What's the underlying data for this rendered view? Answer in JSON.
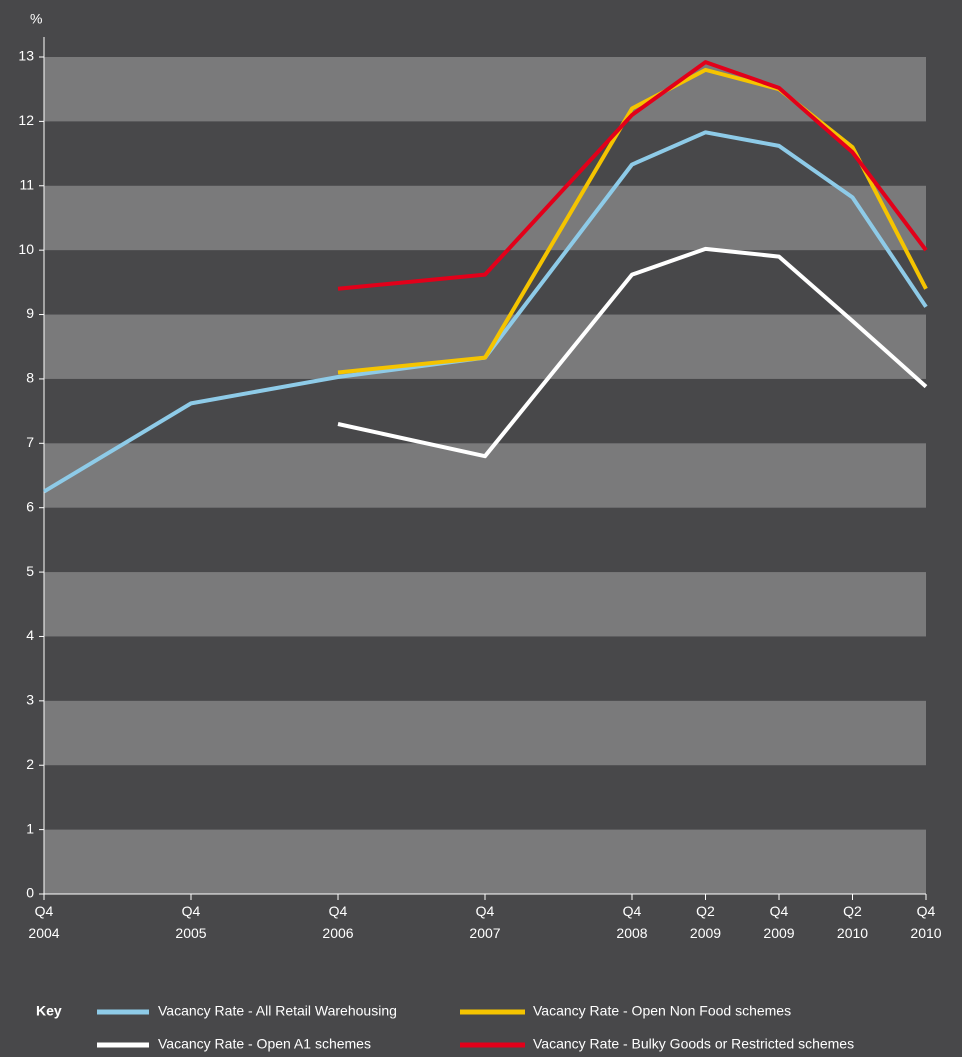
{
  "chart_data": {
    "type": "line",
    "y_label": "%",
    "legend_title": "Key",
    "categories": [
      "Q4 2004",
      "Q4 2005",
      "Q4 2006",
      "Q4 2007",
      "Q4 2008",
      "Q2 2009",
      "Q4 2009",
      "Q2 2010",
      "Q4 2010"
    ],
    "series": [
      {
        "name": "Vacancy Rate - All Retail Warehousing",
        "color": "#8ecbe8",
        "values": [
          6.25,
          7.62,
          8.03,
          8.33,
          11.33,
          11.83,
          11.62,
          10.82,
          9.12
        ]
      },
      {
        "name": "Vacancy Rate - Open Non Food schemes",
        "color": "#f5c400",
        "values": [
          null,
          null,
          8.1,
          8.33,
          12.2,
          12.8,
          12.5,
          11.6,
          9.4
        ]
      },
      {
        "name": "Vacancy Rate - Open A1 schemes",
        "color": "#ffffff",
        "values": [
          null,
          null,
          7.3,
          6.8,
          9.62,
          10.02,
          9.9,
          8.9,
          7.88
        ]
      },
      {
        "name": "Vacancy Rate - Bulky Goods or Restricted schemes",
        "color": "#e2001a",
        "values": [
          null,
          null,
          9.4,
          9.62,
          12.1,
          12.92,
          12.52,
          11.52,
          10.0
        ]
      }
    ],
    "ylim": [
      0,
      13
    ],
    "yticks": [
      0,
      1,
      2,
      3,
      4,
      5,
      6,
      7,
      8,
      9,
      10,
      11,
      12,
      13
    ],
    "grid": "bands"
  }
}
